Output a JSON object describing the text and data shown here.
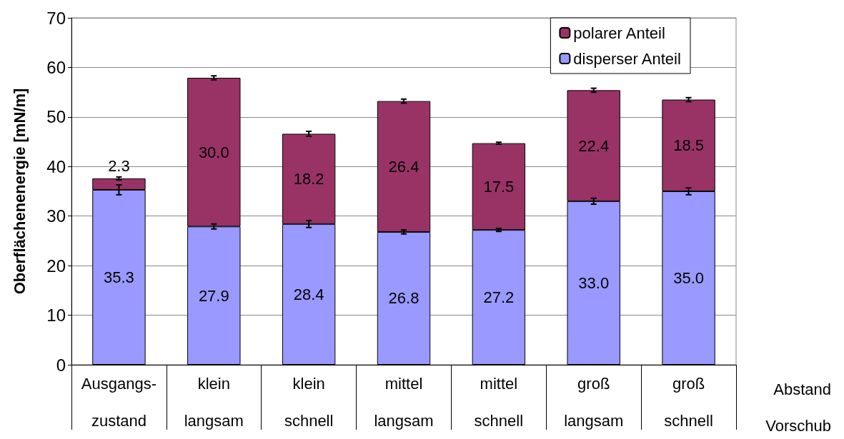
{
  "chart_data": {
    "type": "bar",
    "stacked": true,
    "ylabel": "Oberflächenenergie [mN/m]",
    "categories": [
      "Ausgangs-\nzustand",
      "klein\nlangsam",
      "klein\nschnell",
      "mittel\nlangsam",
      "mittel\nschnell",
      "groß\nlangsam",
      "groß\nschnell"
    ],
    "series": [
      {
        "name": "disperser Anteil",
        "color": "#9999ff",
        "values": [
          35.3,
          27.9,
          28.4,
          26.8,
          27.2,
          33.0,
          35.0
        ],
        "value_labels": [
          "35.3",
          "27.9",
          "28.4",
          "26.8",
          "27.2",
          "33.0",
          "35.0"
        ],
        "errors": [
          1.0,
          0.5,
          0.7,
          0.4,
          0.3,
          0.6,
          0.7
        ]
      },
      {
        "name": "polarer Anteil",
        "color": "#993366",
        "values": [
          2.3,
          30.0,
          18.2,
          26.4,
          17.5,
          22.4,
          18.5
        ],
        "value_labels": [
          "2.3",
          "30.0",
          "18.2",
          "26.4",
          "17.5",
          "22.4",
          "18.5"
        ],
        "errors": [
          0.3,
          0.4,
          0.5,
          0.4,
          0.2,
          0.4,
          0.4
        ]
      }
    ],
    "ylim": [
      0,
      70
    ],
    "yticks": [
      0,
      10,
      20,
      30,
      40,
      50,
      60,
      70
    ],
    "grid": "y",
    "legend": "top right",
    "annotations": [
      "Abstand",
      "Vorschub"
    ]
  }
}
